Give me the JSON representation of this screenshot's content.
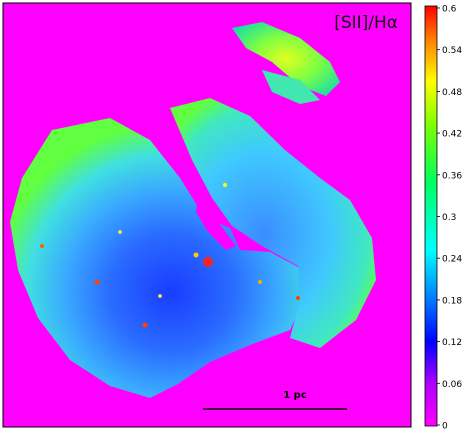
{
  "map": {
    "label": "[SII]/Hα",
    "scale_bar_label": "1 pc",
    "background_color": "#ff00ff"
  },
  "colorbar": {
    "ticks": [
      "0.6",
      "0.54",
      "0.48",
      "0.42",
      "0.36",
      "0.3",
      "0.24",
      "0.18",
      "0.12",
      "0.06",
      "0"
    ],
    "colors": [
      "#ff00ff",
      "#0000ff",
      "#00ffff",
      "#00ff00",
      "#ffff00",
      "#ff0000"
    ]
  }
}
